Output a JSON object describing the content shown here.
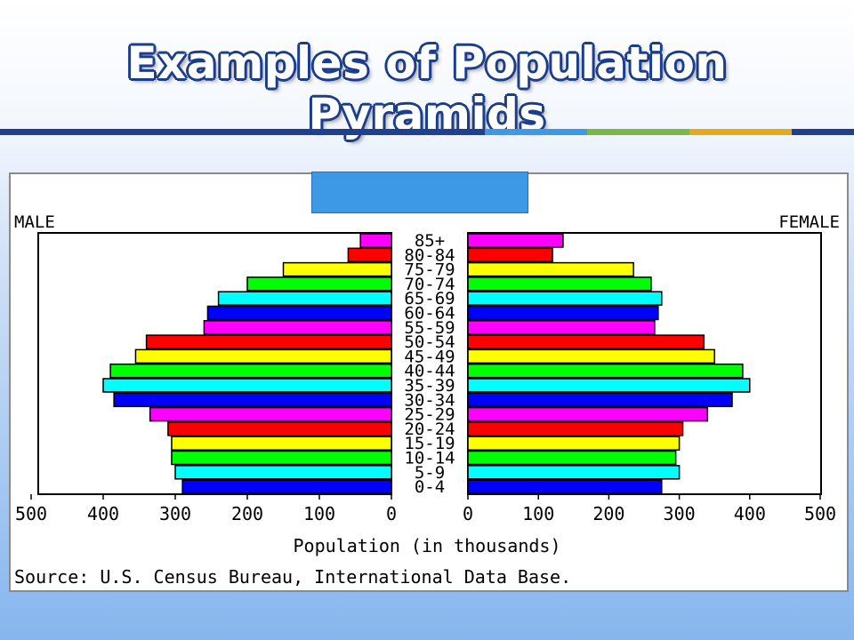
{
  "slide": {
    "title": "Examples of Population Pyramids",
    "accent_colors": [
      "#1f3f8f",
      "#3d98e6",
      "#7ab648",
      "#e5a91e",
      "#1f3f8f"
    ]
  },
  "chart_data": {
    "type": "bar",
    "orientation": "horizontal-population-pyramid",
    "left_label": "MALE",
    "right_label": "FEMALE",
    "xlabel": "Population (in thousands)",
    "source": "Source: U.S. Census Bureau, International Data Base.",
    "xlim": [
      0,
      500
    ],
    "xticks": [
      "500",
      "400",
      "300",
      "200",
      "100",
      "0",
      "0",
      "100",
      "200",
      "300",
      "400",
      "500"
    ],
    "categories": [
      "85+",
      "80-84",
      "75-79",
      "70-74",
      "65-69",
      "60-64",
      "55-59",
      "50-54",
      "45-49",
      "40-44",
      "35-39",
      "30-34",
      "25-29",
      "20-24",
      "15-19",
      "10-14",
      "5-9",
      "0-4"
    ],
    "series": [
      {
        "name": "MALE",
        "values": [
          43,
          60,
          150,
          200,
          240,
          255,
          260,
          340,
          355,
          390,
          400,
          385,
          335,
          310,
          305,
          305,
          300,
          290
        ]
      },
      {
        "name": "FEMALE",
        "values": [
          135,
          120,
          235,
          260,
          275,
          270,
          265,
          335,
          350,
          390,
          400,
          375,
          340,
          305,
          300,
          295,
          300,
          275
        ]
      }
    ],
    "bar_colors": [
      "#ff00ff",
      "#ff0000",
      "#ffff00",
      "#00ff00",
      "#00ffff",
      "#0000ff"
    ]
  }
}
